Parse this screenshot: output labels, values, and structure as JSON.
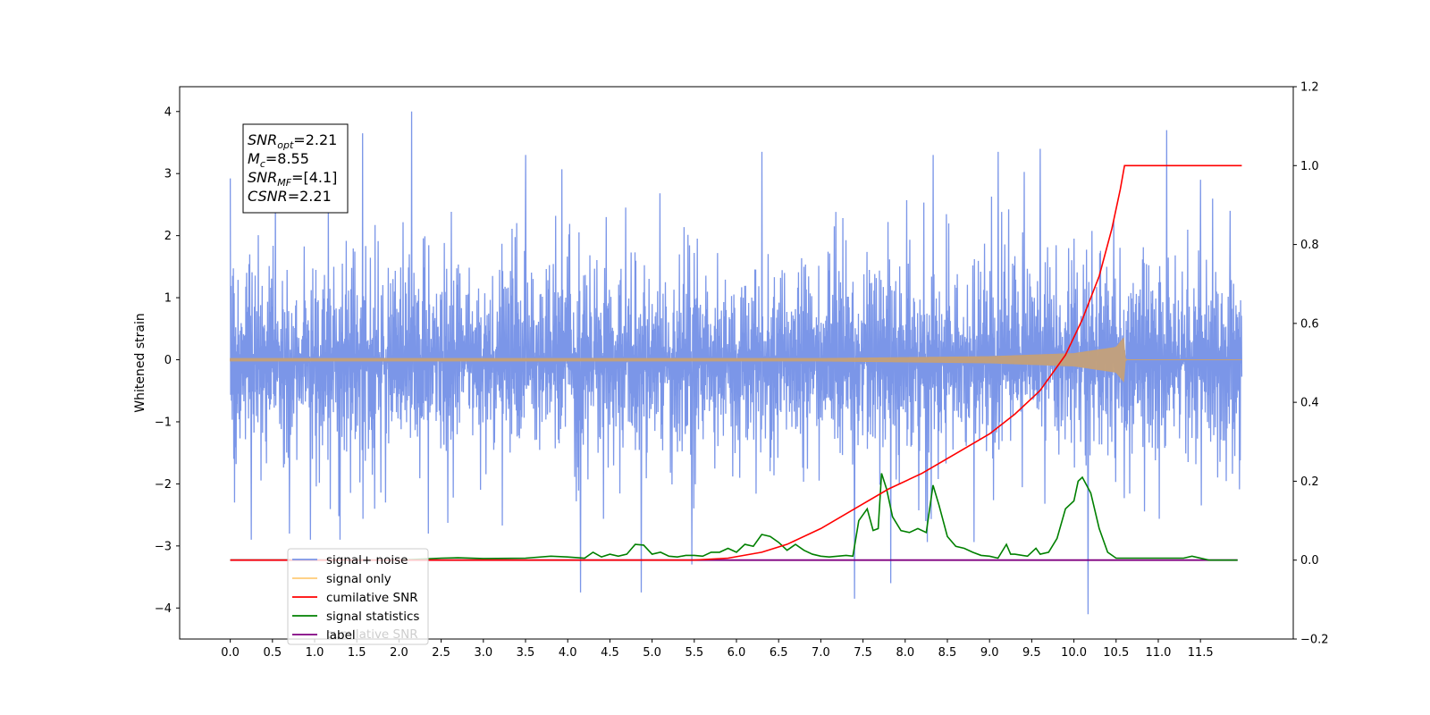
{
  "chart_data": {
    "type": "line",
    "title": "",
    "xlabel": "",
    "ylabel": "Whitened strain",
    "xlim": [
      -0.6,
      12.6
    ],
    "ylim": [
      -4.5,
      4.4
    ],
    "ylim_right": [
      -0.2,
      1.2
    ],
    "x_ticks": [
      "0.0",
      "0.5",
      "1.0",
      "1.5",
      "2.0",
      "2.5",
      "3.0",
      "3.5",
      "4.0",
      "4.5",
      "5.0",
      "5.5",
      "6.0",
      "6.5",
      "7.0",
      "7.5",
      "8.0",
      "8.5",
      "9.0",
      "9.5",
      "10.0",
      "10.5",
      "11.0",
      "11.5"
    ],
    "y_ticks": [
      "4",
      "3",
      "2",
      "1",
      "0",
      "−1",
      "−2",
      "−3",
      "−4"
    ],
    "y_right_ticks": [
      "1.2",
      "1.0",
      "0.8",
      "0.6",
      "0.4",
      "0.2",
      "0.0",
      "−0.2"
    ],
    "grid": false,
    "legend_placement": "lower-left",
    "annotation": [
      {
        "base": "SNR",
        "sub": "opt",
        "rest": "=2.21"
      },
      {
        "base": "M",
        "sub": "c",
        "rest": "=8.55"
      },
      {
        "base": "SNR",
        "sub": "MF",
        "rest": "=[4.1]"
      },
      {
        "base": "CSNR",
        "sub": "",
        "rest": "=2.21"
      }
    ],
    "series": [
      {
        "name": "signal+ noise",
        "color": "#7b96e8",
        "axis": "left",
        "x_range": [
          0.0,
          11.99
        ],
        "typical_range": [
          -1.9,
          2.1
        ],
        "spikes": [
          {
            "x": 0.05,
            "y": 2.3
          },
          {
            "x": 0.05,
            "y": -2.3
          },
          {
            "x": 0.25,
            "y": -2.9
          },
          {
            "x": 0.7,
            "y": -2.8
          },
          {
            "x": 0.95,
            "y": -2.9
          },
          {
            "x": 1.3,
            "y": -2.9
          },
          {
            "x": 1.57,
            "y": 3.65
          },
          {
            "x": 2.15,
            "y": 4.0
          },
          {
            "x": 2.35,
            "y": -2.8
          },
          {
            "x": 3.5,
            "y": 3.3
          },
          {
            "x": 4.15,
            "y": -3.75
          },
          {
            "x": 4.87,
            "y": -3.75
          },
          {
            "x": 5.47,
            "y": -3.3
          },
          {
            "x": 6.3,
            "y": 3.35
          },
          {
            "x": 7.4,
            "y": -3.85
          },
          {
            "x": 7.83,
            "y": -3.6
          },
          {
            "x": 8.33,
            "y": 3.3
          },
          {
            "x": 9.1,
            "y": 3.35
          },
          {
            "x": 9.6,
            "y": 3.4
          },
          {
            "x": 10.17,
            "y": -4.1
          },
          {
            "x": 11.1,
            "y": 3.7
          },
          {
            "x": 11.5,
            "y": 2.9
          },
          {
            "x": 11.85,
            "y": 2.4
          }
        ]
      },
      {
        "name": "signal only",
        "color": "#c4a07a",
        "axis": "left",
        "x_range": [
          0.0,
          11.99
        ],
        "chirp_amplitude": [
          [
            0.0,
            0.02
          ],
          [
            7.0,
            0.02
          ],
          [
            9.0,
            0.05
          ],
          [
            10.0,
            0.1
          ],
          [
            10.5,
            0.2
          ],
          [
            10.59,
            0.35
          ],
          [
            10.61,
            0.0
          ]
        ]
      },
      {
        "name": "cumilative SNR",
        "color": "#ff0000",
        "axis": "right",
        "x": [
          0.0,
          5.5,
          5.9,
          6.3,
          6.6,
          7.0,
          7.4,
          7.8,
          8.2,
          8.6,
          9.0,
          9.3,
          9.6,
          9.9,
          10.1,
          10.3,
          10.45,
          10.55,
          10.6,
          11.99
        ],
        "values": [
          0.0,
          0.0,
          0.005,
          0.02,
          0.04,
          0.08,
          0.13,
          0.18,
          0.22,
          0.27,
          0.32,
          0.37,
          0.43,
          0.52,
          0.61,
          0.72,
          0.84,
          0.94,
          1.0,
          1.0
        ]
      },
      {
        "name": "signal statistics",
        "color": "#008000",
        "axis": "right",
        "x": [
          0.0,
          0.5,
          1.0,
          1.5,
          2.0,
          2.5,
          2.7,
          3.0,
          3.5,
          3.8,
          4.0,
          4.2,
          4.3,
          4.4,
          4.5,
          4.6,
          4.7,
          4.8,
          4.9,
          5.0,
          5.1,
          5.2,
          5.3,
          5.4,
          5.5,
          5.6,
          5.7,
          5.8,
          5.9,
          6.0,
          6.1,
          6.2,
          6.3,
          6.4,
          6.5,
          6.6,
          6.7,
          6.8,
          6.9,
          7.0,
          7.1,
          7.2,
          7.3,
          7.38,
          7.45,
          7.55,
          7.62,
          7.68,
          7.72,
          7.78,
          7.85,
          7.95,
          8.05,
          8.15,
          8.25,
          8.33,
          8.4,
          8.5,
          8.6,
          8.7,
          8.8,
          8.9,
          9.0,
          9.1,
          9.2,
          9.25,
          9.3,
          9.45,
          9.55,
          9.6,
          9.7,
          9.8,
          9.9,
          10.0,
          10.05,
          10.1,
          10.2,
          10.3,
          10.4,
          10.5,
          10.6,
          10.8,
          11.0,
          11.3,
          11.4,
          11.6,
          11.94
        ],
        "values": [
          0.0,
          0.0,
          0.0,
          0.0,
          0.0,
          0.005,
          0.006,
          0.004,
          0.005,
          0.01,
          0.008,
          0.005,
          0.02,
          0.008,
          0.015,
          0.01,
          0.015,
          0.04,
          0.038,
          0.015,
          0.02,
          0.01,
          0.008,
          0.012,
          0.012,
          0.01,
          0.02,
          0.02,
          0.03,
          0.02,
          0.04,
          0.035,
          0.065,
          0.06,
          0.045,
          0.025,
          0.04,
          0.025,
          0.015,
          0.01,
          0.008,
          0.01,
          0.012,
          0.01,
          0.1,
          0.13,
          0.075,
          0.08,
          0.22,
          0.18,
          0.11,
          0.075,
          0.07,
          0.08,
          0.07,
          0.19,
          0.14,
          0.06,
          0.035,
          0.03,
          0.02,
          0.012,
          0.01,
          0.005,
          0.04,
          0.015,
          0.015,
          0.01,
          0.03,
          0.015,
          0.02,
          0.055,
          0.13,
          0.15,
          0.2,
          0.21,
          0.17,
          0.08,
          0.02,
          0.005,
          0.005,
          0.005,
          0.005,
          0.005,
          0.01,
          0.0,
          0.0
        ]
      },
      {
        "name": "label",
        "color": "#800080",
        "axis": "right",
        "x": [
          0.0,
          11.94
        ],
        "values": [
          0.0,
          0.0
        ]
      }
    ],
    "legend": [
      "signal+ noise",
      "signal only",
      "cumilative SNR",
      "signal statistics",
      "label"
    ],
    "legend_overlap_text": "cumilative SNR"
  }
}
